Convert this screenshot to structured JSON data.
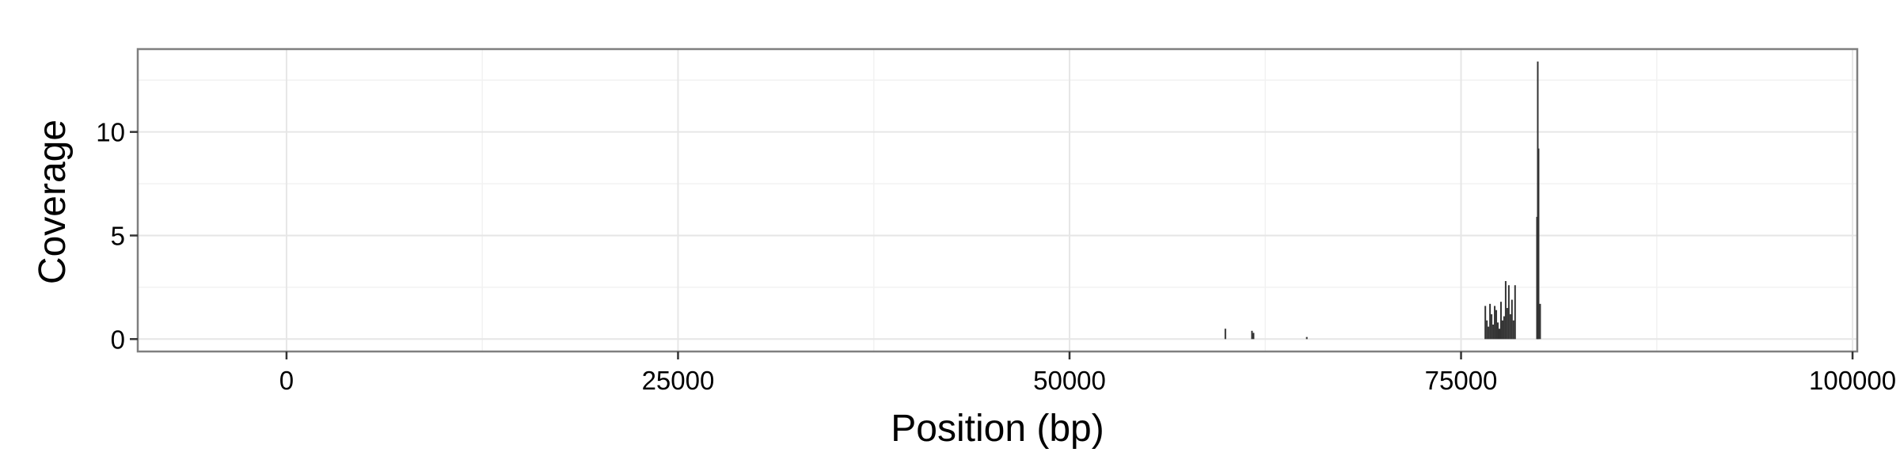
{
  "chart_data": {
    "type": "bar",
    "xlabel": "Position (bp)",
    "ylabel": "Coverage",
    "xlim": [
      -9500,
      100300
    ],
    "ylim": [
      -0.6,
      14.0
    ],
    "x_ticks": [
      0,
      25000,
      50000,
      75000,
      100000
    ],
    "x_tick_labels": [
      "0",
      "25000",
      "50000",
      "75000",
      "100000"
    ],
    "y_ticks": [
      0,
      5,
      10
    ],
    "y_tick_labels": [
      "0",
      "5",
      "10"
    ],
    "grid": true,
    "legend": "none",
    "points": [
      {
        "x": 59950,
        "y": 0.5
      },
      {
        "x": 61650,
        "y": 0.4
      },
      {
        "x": 61750,
        "y": 0.3
      },
      {
        "x": 65150,
        "y": 0.1
      },
      {
        "x": 76550,
        "y": 1.6
      },
      {
        "x": 76650,
        "y": 0.9
      },
      {
        "x": 76750,
        "y": 0.6
      },
      {
        "x": 76850,
        "y": 1.7
      },
      {
        "x": 76950,
        "y": 1.2
      },
      {
        "x": 77050,
        "y": 0.7
      },
      {
        "x": 77150,
        "y": 1.6
      },
      {
        "x": 77250,
        "y": 1.4
      },
      {
        "x": 77350,
        "y": 0.8
      },
      {
        "x": 77450,
        "y": 0.5
      },
      {
        "x": 77550,
        "y": 1.8
      },
      {
        "x": 77650,
        "y": 0.9
      },
      {
        "x": 77750,
        "y": 1.1
      },
      {
        "x": 77850,
        "y": 2.8
      },
      {
        "x": 77950,
        "y": 1.5
      },
      {
        "x": 78050,
        "y": 2.6
      },
      {
        "x": 78150,
        "y": 1.2
      },
      {
        "x": 78250,
        "y": 1.9
      },
      {
        "x": 78350,
        "y": 0.9
      },
      {
        "x": 78450,
        "y": 2.6
      },
      {
        "x": 79900,
        "y": 13.4
      },
      {
        "x": 79950,
        "y": 9.2
      },
      {
        "x": 79850,
        "y": 5.9
      },
      {
        "x": 80050,
        "y": 1.7
      }
    ]
  },
  "colors": {
    "bar": "#333333",
    "grid_major": "#e6e6e6",
    "grid_minor": "#f2f2f2",
    "panel_border": "#7f7f7f",
    "tick": "#333333"
  }
}
